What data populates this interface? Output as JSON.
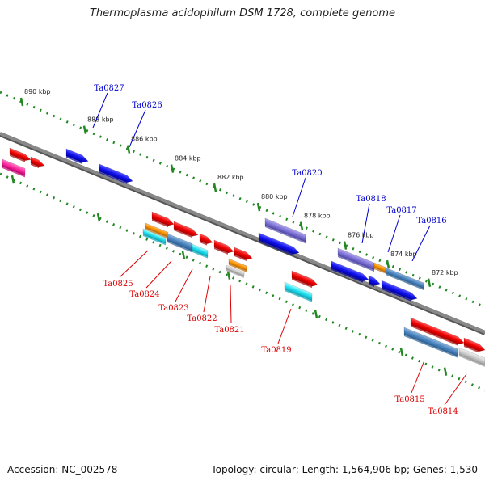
{
  "title": "Thermoplasma acidophilum DSM 1728, complete genome",
  "footer": {
    "accession": "Accession: NC_002578",
    "stats": "Topology: circular; Length: 1,564,906 bp; Genes: 1,530"
  },
  "colors": {
    "forward_label": "#0000cc",
    "reverse_label": "#dd0000",
    "scale_dots": "#228822",
    "backbone": "#888888"
  },
  "scale_ticks": [
    "890 kbp",
    "888 kbp",
    "886 kbp",
    "884 kbp",
    "882 kbp",
    "880 kbp",
    "878 kbp",
    "876 kbp",
    "874 kbp",
    "872 kbp"
  ],
  "forward_labels": [
    "Ta0827",
    "Ta0826",
    "Ta0820",
    "Ta0818",
    "Ta0817",
    "Ta0816"
  ],
  "reverse_labels": [
    "Ta0825",
    "Ta0824",
    "Ta0823",
    "Ta0822",
    "Ta0821",
    "Ta0819",
    "Ta0815",
    "Ta0814"
  ]
}
